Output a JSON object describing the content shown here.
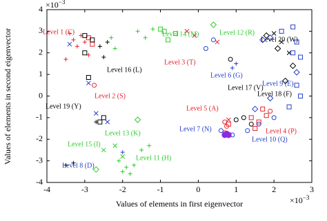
{
  "chart_data": {
    "type": "scatter",
    "x_label": "Values of elements in first eigenvector",
    "y_label": "Values of elements in second eigenvector",
    "x_multiplier": {
      "base": "×10",
      "exp": "−3"
    },
    "y_multiplier": {
      "base": "×10",
      "exp": "−3"
    },
    "xlim": [
      -4,
      3
    ],
    "ylim": [
      -4,
      4
    ],
    "xticks": [
      -4,
      -3,
      -2,
      -1,
      0,
      1,
      2,
      3
    ],
    "yticks": [
      -4,
      -3,
      -2,
      -1,
      0,
      1,
      2,
      3,
      4
    ],
    "series": [
      {
        "color": "#e8202a",
        "marker": "plus",
        "x": [
          -3.3,
          -3.1,
          -3.2,
          -3.5,
          -3.0,
          -2.9,
          -3.4
        ],
        "y": [
          2.6,
          2.8,
          2.3,
          1.7,
          2.5,
          1.9,
          2.9
        ]
      },
      {
        "color": "#e8202a",
        "marker": "square",
        "x": [
          -2.9,
          -2.8,
          1.4,
          1.6,
          1.8,
          1.5,
          0.8,
          1.7
        ],
        "y": [
          2.7,
          2.4,
          -1.0,
          -1.2,
          -0.9,
          -1.5,
          -1.3,
          -0.6
        ]
      },
      {
        "color": "#e8202a",
        "marker": "x",
        "x": [
          -0.3,
          -0.1,
          0.8,
          0.5
        ],
        "y": [
          3.0,
          2.8,
          -1.1,
          2.5
        ]
      },
      {
        "color": "#e8202a",
        "marker": "circle",
        "x": [
          -2.75,
          0.7,
          0.75,
          0.7,
          1.9
        ],
        "y": [
          0.5,
          -1.7,
          -1.4,
          -1.2,
          -0.7
        ]
      },
      {
        "color": "#000000",
        "marker": "square",
        "x": [
          -3.0,
          -2.8,
          -3.0,
          -2.5,
          -2.6,
          -2.9
        ],
        "y": [
          2.8,
          2.6,
          2.0,
          -1.0,
          -1.2,
          0.86
        ]
      },
      {
        "color": "#000000",
        "marker": "plus",
        "x": [
          -2.6,
          -2.5,
          -2.4,
          -3.5,
          -3.3,
          -2.7
        ],
        "y": [
          2.3,
          1.8,
          2.5,
          -3.2,
          -3.1,
          -1.2
        ]
      },
      {
        "color": "#000000",
        "marker": "diamond",
        "x": [
          1.8,
          2.1,
          2.5,
          2.3
        ],
        "y": [
          2.8,
          2.2,
          1.4,
          0.7
        ]
      },
      {
        "color": "#000000",
        "marker": "x",
        "x": [
          2.2,
          2.4,
          2.0
        ],
        "y": [
          2.5,
          2.0,
          2.9
        ]
      },
      {
        "color": "#000000",
        "marker": "circle",
        "x": [
          1.0,
          1.4,
          1.2,
          0.85
        ],
        "y": [
          -1.1,
          -1.3,
          -1.0,
          1.7
        ]
      },
      {
        "color": "#2ecc2e",
        "marker": "plus",
        "x": [
          -2.0,
          -1.9,
          -2.1,
          -1.8,
          -1.5,
          -1.3,
          -1.6,
          -1.4,
          -2.3,
          -2.2,
          -1.2,
          -1.7
        ],
        "y": [
          -3.5,
          -3.3,
          -3.0,
          -3.6,
          -2.5,
          -2.3,
          3.0,
          2.7,
          2.7,
          2.2,
          3.1,
          -3.2
        ]
      },
      {
        "color": "#2ecc2e",
        "marker": "square",
        "x": [
          -0.9,
          -0.8,
          -1.0,
          -0.6
        ],
        "y": [
          3.0,
          2.6,
          3.1,
          2.9
        ]
      },
      {
        "color": "#2ecc2e",
        "marker": "x",
        "x": [
          -2.5,
          -2.2,
          -2.0
        ],
        "y": [
          -2.5,
          -2.3,
          -2.8
        ]
      },
      {
        "color": "#2ecc2e",
        "marker": "diamond",
        "x": [
          -2.7,
          -1.6,
          0.4
        ],
        "y": [
          -3.4,
          -1.1,
          3.3
        ]
      },
      {
        "color": "#2440c8",
        "marker": "square",
        "x": [
          2.5,
          2.6,
          2.7,
          2.6,
          2.4,
          2.7,
          2.2,
          2.5
        ],
        "y": [
          3.2,
          2.5,
          1.8,
          0.5,
          -0.5,
          0.0,
          3.0,
          2.0
        ]
      },
      {
        "color": "#2440c8",
        "marker": "diamond",
        "x": [
          1.7,
          1.9,
          2.6,
          1.5,
          1.9
        ],
        "y": [
          2.6,
          2.7,
          1.1,
          -0.6,
          -0.1
        ]
      },
      {
        "color": "#2440c8",
        "marker": "x",
        "x": [
          -2.7,
          -2.4,
          -2.9,
          -3.4
        ],
        "y": [
          -0.8,
          -1.2,
          0.6,
          2.4
        ]
      },
      {
        "color": "#2440c8",
        "marker": "plus",
        "x": [
          0.9,
          1.0,
          -2.0
        ],
        "y": [
          1.3,
          1.5,
          -2.6
        ]
      },
      {
        "color": "#2440c8",
        "marker": "circle",
        "x": [
          0.2,
          0.4,
          0.6,
          0.9,
          1.3,
          1.6,
          2.0
        ],
        "y": [
          2.2,
          2.6,
          -1.6,
          -1.8,
          -1.6,
          -1.3,
          -1.0
        ]
      },
      {
        "color": "#8a2be2",
        "marker": "dot",
        "x": [
          0.7,
          0.8,
          0.75
        ],
        "y": [
          -1.8,
          -1.8,
          -1.75
        ]
      }
    ],
    "annotations": [
      {
        "text": "Level 1 (C)",
        "color": "#e8202a"
      },
      {
        "text": "Level 14 (M)",
        "color": "#2ecc2e"
      },
      {
        "text": "Level 12 (R)",
        "color": "#2ecc2e"
      },
      {
        "text": "Level 20 (W)",
        "color": "#000000"
      },
      {
        "text": "Level 3 (T)",
        "color": "#e8202a"
      },
      {
        "text": "Level 16 (L)",
        "color": "#000000"
      },
      {
        "text": "Level 6 (G)",
        "color": "#2440c8"
      },
      {
        "text": "Level 9 (E)",
        "color": "#2440c8"
      },
      {
        "text": "Level 17 (V)",
        "color": "#000000"
      },
      {
        "text": "Level 18 (F)",
        "color": "#000000"
      },
      {
        "text": "Level 2 (S)",
        "color": "#e8202a"
      },
      {
        "text": "Level 19 (Y)",
        "color": "#000000"
      },
      {
        "text": "Level 5 (A)",
        "color": "#e8202a"
      },
      {
        "text": "Level 7 (N)",
        "color": "#2440c8"
      },
      {
        "text": "Level 4 (P)",
        "color": "#e8202a"
      },
      {
        "text": "Level 10 (Q)",
        "color": "#2440c8"
      },
      {
        "text": "Level 13 (K)",
        "color": "#2ecc2e"
      },
      {
        "text": "Level 15 (I)",
        "color": "#2ecc2e"
      },
      {
        "text": "Level 11 (H)",
        "color": "#2ecc2e"
      },
      {
        "text": "Level 8 (D)",
        "color": "#2440c8"
      }
    ]
  }
}
